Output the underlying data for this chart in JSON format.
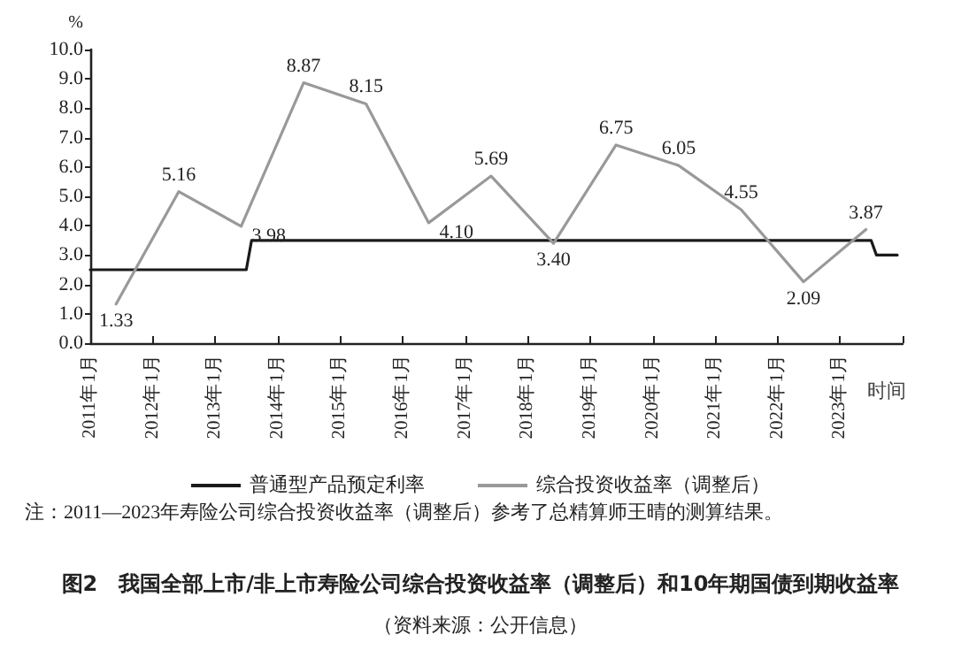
{
  "chart_data": {
    "type": "line",
    "title": "图2　我国全部上市/非上市寿险公司综合投资收益率（调整后）和10年期国债到期收益率",
    "subtitle": "（资料来源：公开信息）",
    "annotations": [
      "注：2011—2023年寿险公司综合投资收益率（调整后）参考了总精算师王晴的测算结果。"
    ],
    "xlabel": "时间",
    "ylabel": "%",
    "xlim": [
      "2011-01",
      "2024-01"
    ],
    "xticks": [
      {
        "value": "2011-01",
        "label": "2011年1月"
      },
      {
        "value": "2012-01",
        "label": "2012年1月"
      },
      {
        "value": "2013-01",
        "label": "2013年1月"
      },
      {
        "value": "2014-01",
        "label": "2014年1月"
      },
      {
        "value": "2015-01",
        "label": "2015年1月"
      },
      {
        "value": "2016-01",
        "label": "2016年1月"
      },
      {
        "value": "2017-01",
        "label": "2017年1月"
      },
      {
        "value": "2018-01",
        "label": "2018年1月"
      },
      {
        "value": "2019-01",
        "label": "2019年1月"
      },
      {
        "value": "2020-01",
        "label": "2020年1月"
      },
      {
        "value": "2021-01",
        "label": "2021年1月"
      },
      {
        "value": "2022-01",
        "label": "2022年1月"
      },
      {
        "value": "2023-01",
        "label": "2023年1月"
      },
      {
        "value": "2024-01",
        "label": null
      }
    ],
    "ylim": [
      0,
      10
    ],
    "yticks": [
      {
        "value": 0,
        "label": "0.0"
      },
      {
        "value": 1,
        "label": "1.0"
      },
      {
        "value": 2,
        "label": "2.0"
      },
      {
        "value": 3,
        "label": "3.0"
      },
      {
        "value": 4,
        "label": "4.0"
      },
      {
        "value": 5,
        "label": "5.0"
      },
      {
        "value": 6,
        "label": "6.0"
      },
      {
        "value": 7,
        "label": "7.0"
      },
      {
        "value": 8,
        "label": "8.0"
      },
      {
        "value": 9,
        "label": "9.0"
      },
      {
        "value": 10,
        "label": "10.0"
      }
    ],
    "series": [
      {
        "name": "普通型产品预定利率",
        "color": "#1a1a1a",
        "x": [
          "2011-01",
          "2013-07",
          "2013-08",
          "2023-07",
          "2023-08",
          "2023-12"
        ],
        "values": [
          2.5,
          2.5,
          3.5,
          3.5,
          3.0,
          3.0
        ]
      },
      {
        "name": "综合投资收益率（调整后）",
        "color": "#999999",
        "x": [
          "2011-06",
          "2012-06",
          "2013-06",
          "2014-06",
          "2015-06",
          "2016-06",
          "2017-06",
          "2018-06",
          "2019-06",
          "2020-06",
          "2021-06",
          "2022-06",
          "2023-06"
        ],
        "values": [
          1.33,
          5.16,
          3.98,
          8.87,
          8.15,
          4.1,
          5.69,
          3.4,
          6.75,
          6.05,
          4.55,
          2.09,
          3.87
        ],
        "value_labels": [
          "1.33",
          "5.16",
          "3.98",
          "8.87",
          "8.15",
          "4.10",
          "5.69",
          "3.40",
          "6.75",
          "6.05",
          "4.55",
          "2.09",
          "3.87"
        ]
      }
    ],
    "legend": "bottom",
    "marker": "none",
    "line_style": "solid",
    "grid": false
  }
}
